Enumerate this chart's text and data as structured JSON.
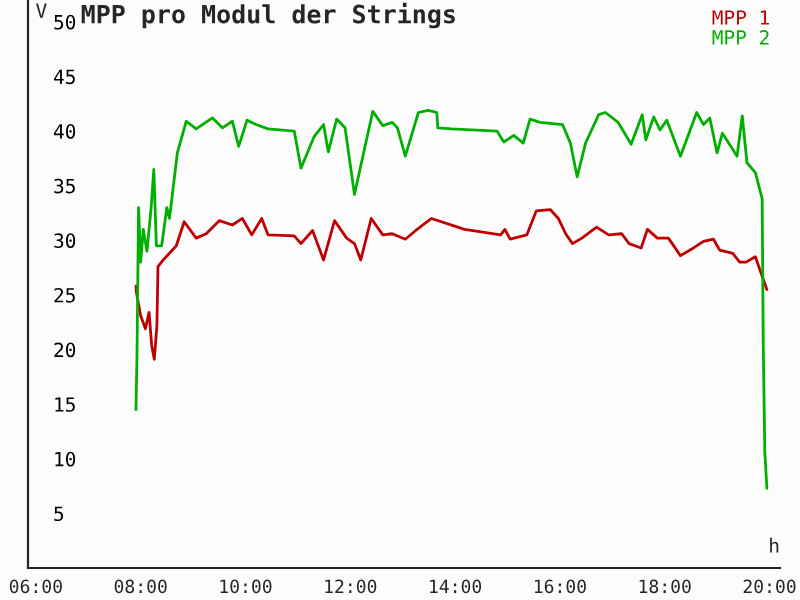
{
  "chart_data": {
    "type": "line",
    "title": "MPP pro Modul der Strings",
    "xlabel": "h",
    "ylabel": "V",
    "xlim": [
      5.85,
      20.2
    ],
    "ylim": [
      0,
      52
    ],
    "xticks": [
      {
        "value": 6,
        "label": "06:00"
      },
      {
        "value": 8,
        "label": "08:00"
      },
      {
        "value": 10,
        "label": "10:00"
      },
      {
        "value": 12,
        "label": "12:00"
      },
      {
        "value": 14,
        "label": "14:00"
      },
      {
        "value": 16,
        "label": "16:00"
      },
      {
        "value": 18,
        "label": "18:00"
      },
      {
        "value": 20,
        "label": "20:00"
      }
    ],
    "yticks": [
      5,
      10,
      15,
      20,
      25,
      30,
      35,
      40,
      45,
      50
    ],
    "grid": false,
    "legend": "top right",
    "marker": "none",
    "line_style": "solid",
    "series": [
      {
        "name": "MPP 1",
        "color": "#c00000",
        "x": [
          7.91,
          7.92,
          8.0,
          8.09,
          8.16,
          8.21,
          8.26,
          8.31,
          8.33,
          8.43,
          8.68,
          8.83,
          9.06,
          9.25,
          9.5,
          9.75,
          9.94,
          10.12,
          10.31,
          10.43,
          10.93,
          11.06,
          11.28,
          11.49,
          11.7,
          11.93,
          12.08,
          12.2,
          12.4,
          12.62,
          12.8,
          13.05,
          13.3,
          13.55,
          14.18,
          14.87,
          14.95,
          15.05,
          15.37,
          15.55,
          15.82,
          15.97,
          16.11,
          16.24,
          16.42,
          16.7,
          16.93,
          17.18,
          17.32,
          17.55,
          17.67,
          17.86,
          18.07,
          18.3,
          18.55,
          18.74,
          18.93,
          19.05,
          19.3,
          19.43,
          19.55,
          19.73,
          19.86,
          19.95
        ],
        "values": [
          25.8,
          25.2,
          23.1,
          21.9,
          23.4,
          20.4,
          19.1,
          22.2,
          27.6,
          28.2,
          29.5,
          31.7,
          30.2,
          30.6,
          31.8,
          31.4,
          32.0,
          30.5,
          32.0,
          30.5,
          30.4,
          29.7,
          30.9,
          28.2,
          31.8,
          30.2,
          29.7,
          28.2,
          32.0,
          30.5,
          30.6,
          30.1,
          31.1,
          32.0,
          31.0,
          30.5,
          31.0,
          30.1,
          30.5,
          32.7,
          32.8,
          32.0,
          30.6,
          29.7,
          30.2,
          31.2,
          30.5,
          30.6,
          29.7,
          29.3,
          31.0,
          30.2,
          30.2,
          28.6,
          29.3,
          29.9,
          30.1,
          29.1,
          28.8,
          28.0,
          28.0,
          28.5,
          26.7,
          25.5
        ]
      },
      {
        "name": "MPP 2",
        "color": "#00b000",
        "x": [
          7.91,
          7.93,
          7.96,
          8.0,
          8.05,
          8.12,
          8.2,
          8.25,
          8.3,
          8.4,
          8.5,
          8.55,
          8.7,
          8.87,
          9.06,
          9.37,
          9.56,
          9.75,
          9.87,
          10.03,
          10.2,
          10.43,
          10.93,
          11.06,
          11.31,
          11.49,
          11.58,
          11.74,
          11.9,
          12.08,
          12.24,
          12.43,
          12.62,
          12.8,
          12.9,
          13.05,
          13.3,
          13.49,
          13.65,
          13.67,
          13.93,
          14.8,
          14.93,
          15.12,
          15.3,
          15.43,
          15.62,
          16.05,
          16.2,
          16.33,
          16.49,
          16.74,
          16.87,
          17.11,
          17.36,
          17.57,
          17.64,
          17.79,
          17.91,
          18.04,
          18.3,
          18.61,
          18.74,
          18.86,
          19.0,
          19.1,
          19.26,
          19.38,
          19.48,
          19.57,
          19.73,
          19.86,
          19.88,
          19.91,
          19.95
        ],
        "values": [
          14.5,
          19.5,
          33.0,
          28.0,
          31.0,
          29.0,
          33.0,
          36.5,
          29.5,
          29.5,
          33.0,
          32.0,
          38.0,
          40.9,
          40.2,
          41.2,
          40.3,
          40.9,
          38.6,
          41.0,
          40.6,
          40.2,
          40.0,
          36.6,
          39.5,
          40.6,
          38.1,
          41.1,
          40.3,
          34.2,
          37.7,
          41.8,
          40.5,
          40.8,
          40.3,
          37.7,
          41.7,
          41.9,
          41.7,
          40.3,
          40.2,
          40.0,
          39.0,
          39.6,
          38.9,
          41.1,
          40.8,
          40.6,
          38.9,
          35.8,
          38.9,
          41.5,
          41.7,
          40.8,
          38.8,
          41.5,
          39.2,
          41.3,
          40.1,
          41.0,
          37.7,
          41.7,
          40.6,
          41.2,
          38.0,
          39.8,
          38.6,
          37.7,
          41.4,
          37.1,
          36.2,
          33.8,
          20.7,
          10.6,
          7.3
        ]
      }
    ]
  }
}
